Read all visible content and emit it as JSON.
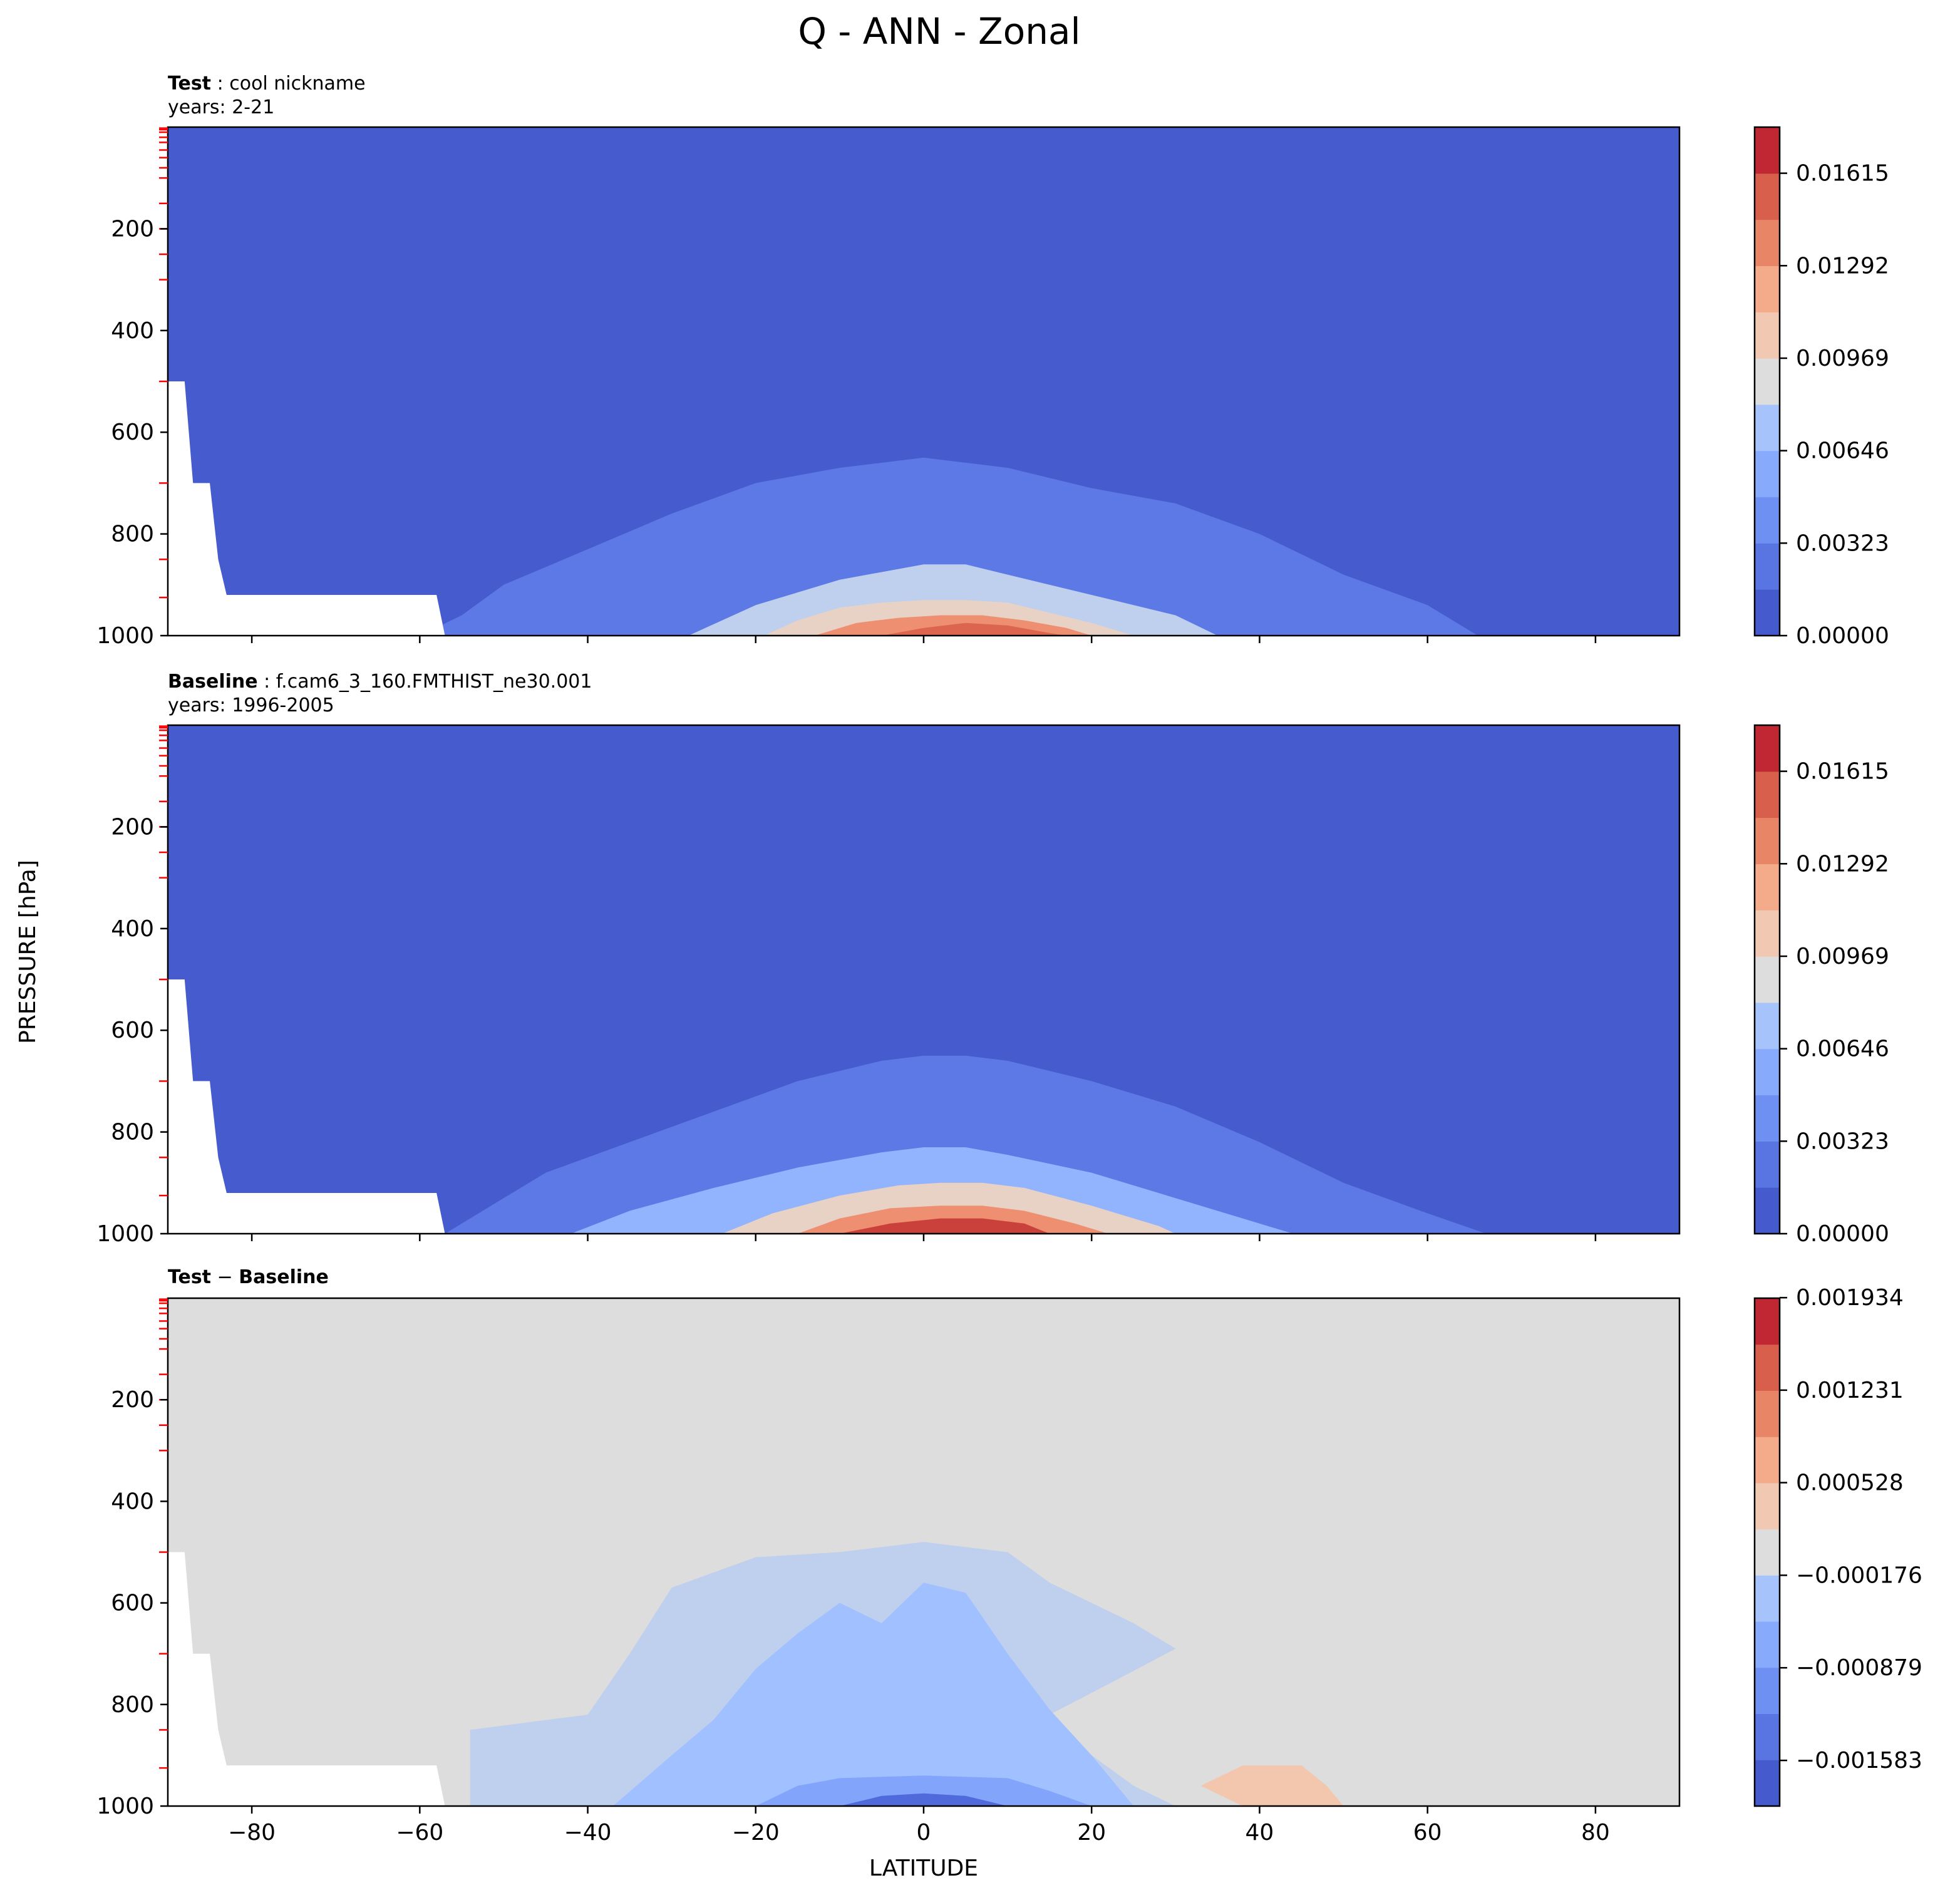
{
  "figure": {
    "title": "Q - ANN - Zonal",
    "ylabel": "PRESSURE [hPa]",
    "xlabel": "LATITUDE"
  },
  "chart_data": [
    {
      "type": "heatmap",
      "name_bold": "Test",
      "name_rest": "cool nickname",
      "years": "years: 2-21",
      "xlim": [
        -90,
        90
      ],
      "ylim": [
        1000,
        0
      ],
      "xticks": [
        -80,
        -60,
        -40,
        -20,
        0,
        20,
        40,
        60,
        80
      ],
      "yticks": [
        200,
        400,
        600,
        800,
        1000
      ],
      "colorbar_ticks": [
        "0.00000",
        "0.00323",
        "0.00646",
        "0.00969",
        "0.01292",
        "0.01615"
      ],
      "colorbar_tick_values": [
        0.0,
        0.00323,
        0.00646,
        0.00969,
        0.01292,
        0.01615
      ],
      "colorbar_range": [
        0.0,
        0.01776
      ],
      "colorbar_bins": 11,
      "contours": [
        [
          [
            -60,
            1000
          ],
          [
            -55,
            960
          ],
          [
            -50,
            900
          ],
          [
            -40,
            830
          ],
          [
            -30,
            760
          ],
          [
            -20,
            700
          ],
          [
            -10,
            670
          ],
          [
            0,
            650
          ],
          [
            5,
            660
          ],
          [
            10,
            670
          ],
          [
            20,
            710
          ],
          [
            30,
            740
          ],
          [
            40,
            800
          ],
          [
            50,
            880
          ],
          [
            60,
            940
          ],
          [
            66,
            1000
          ]
        ],
        [
          [
            -28,
            1000
          ],
          [
            -20,
            940
          ],
          [
            -10,
            890
          ],
          [
            0,
            860
          ],
          [
            5,
            860
          ],
          [
            10,
            880
          ],
          [
            20,
            920
          ],
          [
            30,
            960
          ],
          [
            35,
            1000
          ]
        ],
        [
          [
            -19,
            1000
          ],
          [
            -15,
            970
          ],
          [
            -10,
            945
          ],
          [
            -5,
            935
          ],
          [
            0,
            930
          ],
          [
            5,
            930
          ],
          [
            10,
            935
          ],
          [
            15,
            955
          ],
          [
            20,
            975
          ],
          [
            25,
            1000
          ]
        ],
        [
          [
            -13,
            1000
          ],
          [
            -8,
            975
          ],
          [
            -3,
            965
          ],
          [
            2,
            960
          ],
          [
            7,
            960
          ],
          [
            12,
            970
          ],
          [
            17,
            985
          ],
          [
            20,
            1000
          ]
        ],
        [
          [
            -5,
            1000
          ],
          [
            0,
            985
          ],
          [
            5,
            975
          ],
          [
            10,
            980
          ],
          [
            15,
            995
          ],
          [
            17,
            1000
          ]
        ]
      ]
    },
    {
      "type": "heatmap",
      "name_bold": "Baseline",
      "name_rest": "f.cam6_3_160.FMTHIST_ne30.001",
      "years": "years: 1996-2005",
      "xlim": [
        -90,
        90
      ],
      "ylim": [
        1000,
        0
      ],
      "xticks": [
        -80,
        -60,
        -40,
        -20,
        0,
        20,
        40,
        60,
        80
      ],
      "yticks": [
        200,
        400,
        600,
        800,
        1000
      ],
      "colorbar_ticks": [
        "0.00000",
        "0.00323",
        "0.00646",
        "0.00969",
        "0.01292",
        "0.01615"
      ],
      "colorbar_tick_values": [
        0.0,
        0.00323,
        0.00646,
        0.00969,
        0.01292,
        0.01615
      ],
      "colorbar_range": [
        0.0,
        0.01776
      ],
      "colorbar_bins": 11,
      "contours": [
        [
          [
            -57,
            1000
          ],
          [
            -52,
            950
          ],
          [
            -45,
            880
          ],
          [
            -35,
            820
          ],
          [
            -25,
            760
          ],
          [
            -15,
            700
          ],
          [
            -5,
            660
          ],
          [
            0,
            650
          ],
          [
            5,
            650
          ],
          [
            10,
            660
          ],
          [
            20,
            700
          ],
          [
            30,
            750
          ],
          [
            40,
            820
          ],
          [
            50,
            900
          ],
          [
            60,
            960
          ],
          [
            67,
            1000
          ]
        ],
        [
          [
            -42,
            1000
          ],
          [
            -35,
            955
          ],
          [
            -25,
            910
          ],
          [
            -15,
            870
          ],
          [
            -5,
            840
          ],
          [
            0,
            830
          ],
          [
            5,
            830
          ],
          [
            10,
            845
          ],
          [
            20,
            880
          ],
          [
            30,
            930
          ],
          [
            40,
            980
          ],
          [
            44,
            1000
          ]
        ],
        [
          [
            -24,
            1000
          ],
          [
            -18,
            960
          ],
          [
            -10,
            925
          ],
          [
            -3,
            905
          ],
          [
            2,
            900
          ],
          [
            7,
            900
          ],
          [
            12,
            910
          ],
          [
            20,
            945
          ],
          [
            28,
            985
          ],
          [
            30,
            1000
          ]
        ],
        [
          [
            -15,
            1000
          ],
          [
            -10,
            970
          ],
          [
            -4,
            950
          ],
          [
            2,
            945
          ],
          [
            7,
            945
          ],
          [
            12,
            955
          ],
          [
            18,
            980
          ],
          [
            22,
            1000
          ]
        ],
        [
          [
            -10,
            1000
          ],
          [
            -4,
            980
          ],
          [
            2,
            970
          ],
          [
            7,
            970
          ],
          [
            12,
            980
          ],
          [
            15,
            1000
          ]
        ]
      ]
    },
    {
      "type": "heatmap",
      "name_bold": "Test",
      "name_rest": "Baseline",
      "years": "",
      "xlim": [
        -90,
        90
      ],
      "ylim": [
        1000,
        0
      ],
      "xticks": [
        -80,
        -60,
        -40,
        -20,
        0,
        20,
        40,
        60,
        80
      ],
      "yticks": [
        200,
        400,
        600,
        800,
        1000
      ],
      "colorbar_ticks": [
        "−0.001583",
        "−0.000879",
        "−0.000176",
        "0.000528",
        "0.001231",
        "0.001934"
      ],
      "colorbar_tick_values": [
        -0.001583,
        -0.000879,
        -0.000176,
        0.000528,
        0.001231,
        0.001934
      ],
      "colorbar_range": [
        -0.00193,
        0.00193
      ],
      "colorbar_bins": 11,
      "contours": [
        [
          [
            -54,
            1000
          ],
          [
            -54,
            850
          ],
          [
            -40,
            820
          ],
          [
            -35,
            700
          ],
          [
            -30,
            570
          ],
          [
            -20,
            510
          ],
          [
            -10,
            500
          ],
          [
            0,
            480
          ],
          [
            10,
            500
          ],
          [
            15,
            560
          ],
          [
            20,
            600
          ],
          [
            25,
            640
          ],
          [
            30,
            690
          ],
          [
            22,
            760
          ],
          [
            15,
            820
          ],
          [
            20,
            900
          ],
          [
            25,
            960
          ],
          [
            30,
            1000
          ]
        ],
        [
          [
            -37,
            1000
          ],
          [
            -30,
            900
          ],
          [
            -25,
            830
          ],
          [
            -20,
            730
          ],
          [
            -15,
            660
          ],
          [
            -10,
            600
          ],
          [
            -5,
            640
          ],
          [
            0,
            560
          ],
          [
            5,
            580
          ],
          [
            10,
            700
          ],
          [
            15,
            810
          ],
          [
            20,
            900
          ],
          [
            25,
            1000
          ]
        ],
        [
          [
            -20,
            1000
          ],
          [
            -15,
            960
          ],
          [
            -10,
            945
          ],
          [
            0,
            940
          ],
          [
            10,
            945
          ],
          [
            15,
            970
          ],
          [
            20,
            1000
          ]
        ],
        [
          [
            -10,
            1000
          ],
          [
            -5,
            980
          ],
          [
            0,
            975
          ],
          [
            5,
            980
          ],
          [
            10,
            1000
          ]
        ],
        [
          [
            33,
            960
          ],
          [
            38,
            920
          ],
          [
            45,
            920
          ],
          [
            48,
            960
          ],
          [
            50,
            1000
          ],
          [
            38,
            1000
          ]
        ]
      ]
    }
  ],
  "colors": {
    "coolwarm_low": "#3b4cc0",
    "coolwarm_mid": "#dddddd",
    "coolwarm_high": "#b40426"
  }
}
